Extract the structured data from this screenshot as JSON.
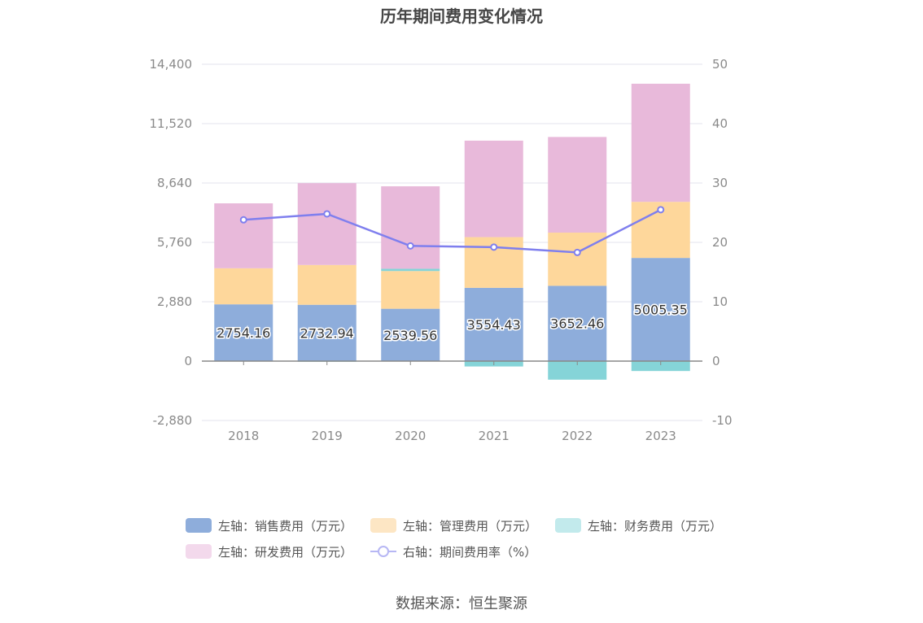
{
  "title": "历年期间费用变化情况",
  "source": "数据来源：恒生聚源",
  "colors": {
    "selling": "#8eaddb",
    "management": "#fed79b",
    "finance": "#85d4d8",
    "rnd": "#e8b9da",
    "rate": "#7f7fee",
    "grid": "#e3e3ee",
    "axis": "#888888"
  },
  "legend": [
    {
      "label": "左轴：销售费用（万元）",
      "color": "#8eaddb",
      "type": "box"
    },
    {
      "label": "左轴：管理费用（万元）",
      "color": "#fde6c4",
      "type": "box"
    },
    {
      "label": "左轴：财务费用（万元）",
      "color": "#c2eaec",
      "type": "box"
    },
    {
      "label": "左轴：研发费用（万元）",
      "color": "#f3d9ec",
      "type": "box"
    },
    {
      "label": "右轴：期间费用率（%）",
      "color": "#b7b7f4",
      "type": "line"
    }
  ],
  "chart_data": {
    "type": "bar",
    "stacked": true,
    "categories": [
      "2018",
      "2019",
      "2020",
      "2021",
      "2022",
      "2023"
    ],
    "left_axis": {
      "ylim": [
        -2880,
        14400
      ],
      "ticks": [
        -2880,
        0,
        2880,
        5760,
        8640,
        11520,
        14400
      ],
      "tick_labels": [
        "-2,880",
        "0",
        "2,880",
        "5,760",
        "8,640",
        "11,520",
        "14,400"
      ]
    },
    "right_axis": {
      "ylim": [
        -10,
        50
      ],
      "ticks": [
        -10,
        0,
        10,
        20,
        30,
        40,
        50
      ],
      "tick_labels": [
        "-10",
        "0",
        "10",
        "20",
        "30",
        "40",
        "50"
      ]
    },
    "series": [
      {
        "name": "左轴：销售费用（万元）",
        "axis": "left",
        "values": [
          2754.16,
          2732.94,
          2539.56,
          3554.43,
          3652.46,
          5005.35
        ],
        "data_labels": [
          "2754.16",
          "2732.94",
          "2539.56",
          "3554.43",
          "3652.46",
          "5005.35"
        ]
      },
      {
        "name": "左轴：管理费用（万元）",
        "axis": "left",
        "values": [
          1750,
          1930,
          1830,
          2460,
          2580,
          2720
        ]
      },
      {
        "name": "左轴：财务费用（万元）",
        "axis": "left",
        "values": [
          -20,
          -30,
          110,
          -260,
          -900,
          -480
        ]
      },
      {
        "name": "左轴：研发费用（万元）",
        "axis": "left",
        "values": [
          3150,
          3970,
          4000,
          4680,
          4640,
          5730
        ]
      },
      {
        "name": "右轴：期间费用率（%）",
        "axis": "right",
        "type": "line",
        "values": [
          23.8,
          24.8,
          19.4,
          19.2,
          18.3,
          25.5
        ]
      }
    ],
    "grid": true,
    "legend_position": "bottom"
  }
}
